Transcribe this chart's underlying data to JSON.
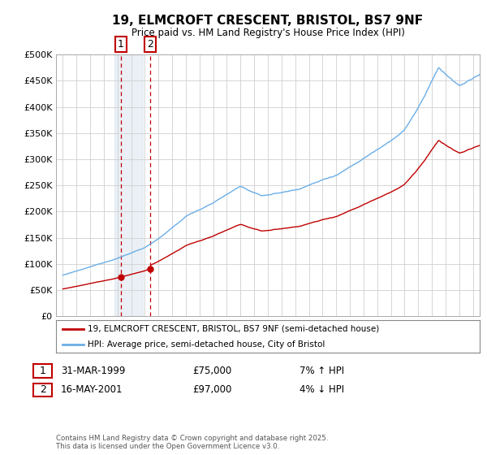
{
  "title": "19, ELMCROFT CRESCENT, BRISTOL, BS7 9NF",
  "subtitle": "Price paid vs. HM Land Registry's House Price Index (HPI)",
  "legend_line1": "19, ELMCROFT CRESCENT, BRISTOL, BS7 9NF (semi-detached house)",
  "legend_line2": "HPI: Average price, semi-detached house, City of Bristol",
  "annotation1_label": "1",
  "annotation1_date": "31-MAR-1999",
  "annotation1_price": "£75,000",
  "annotation1_hpi": "7% ↑ HPI",
  "annotation2_label": "2",
  "annotation2_date": "16-MAY-2001",
  "annotation2_price": "£97,000",
  "annotation2_hpi": "4% ↓ HPI",
  "footnote": "Contains HM Land Registry data © Crown copyright and database right 2025.\nThis data is licensed under the Open Government Licence v3.0.",
  "purchase1_year": 1999.25,
  "purchase1_value": 75000,
  "purchase2_year": 2001.37,
  "purchase2_value": 97000,
  "hpi_color": "#6aaee8",
  "price_color": "#c00000",
  "annotation_box_color": "#c00000",
  "shading_color": "#dce6f1",
  "background_color": "#ffffff",
  "grid_color": "#d0d0d0",
  "ylim": [
    0,
    500000
  ],
  "yticks": [
    0,
    50000,
    100000,
    150000,
    200000,
    250000,
    300000,
    350000,
    400000,
    450000,
    500000
  ],
  "xlim_start": 1994.5,
  "xlim_end": 2025.5
}
